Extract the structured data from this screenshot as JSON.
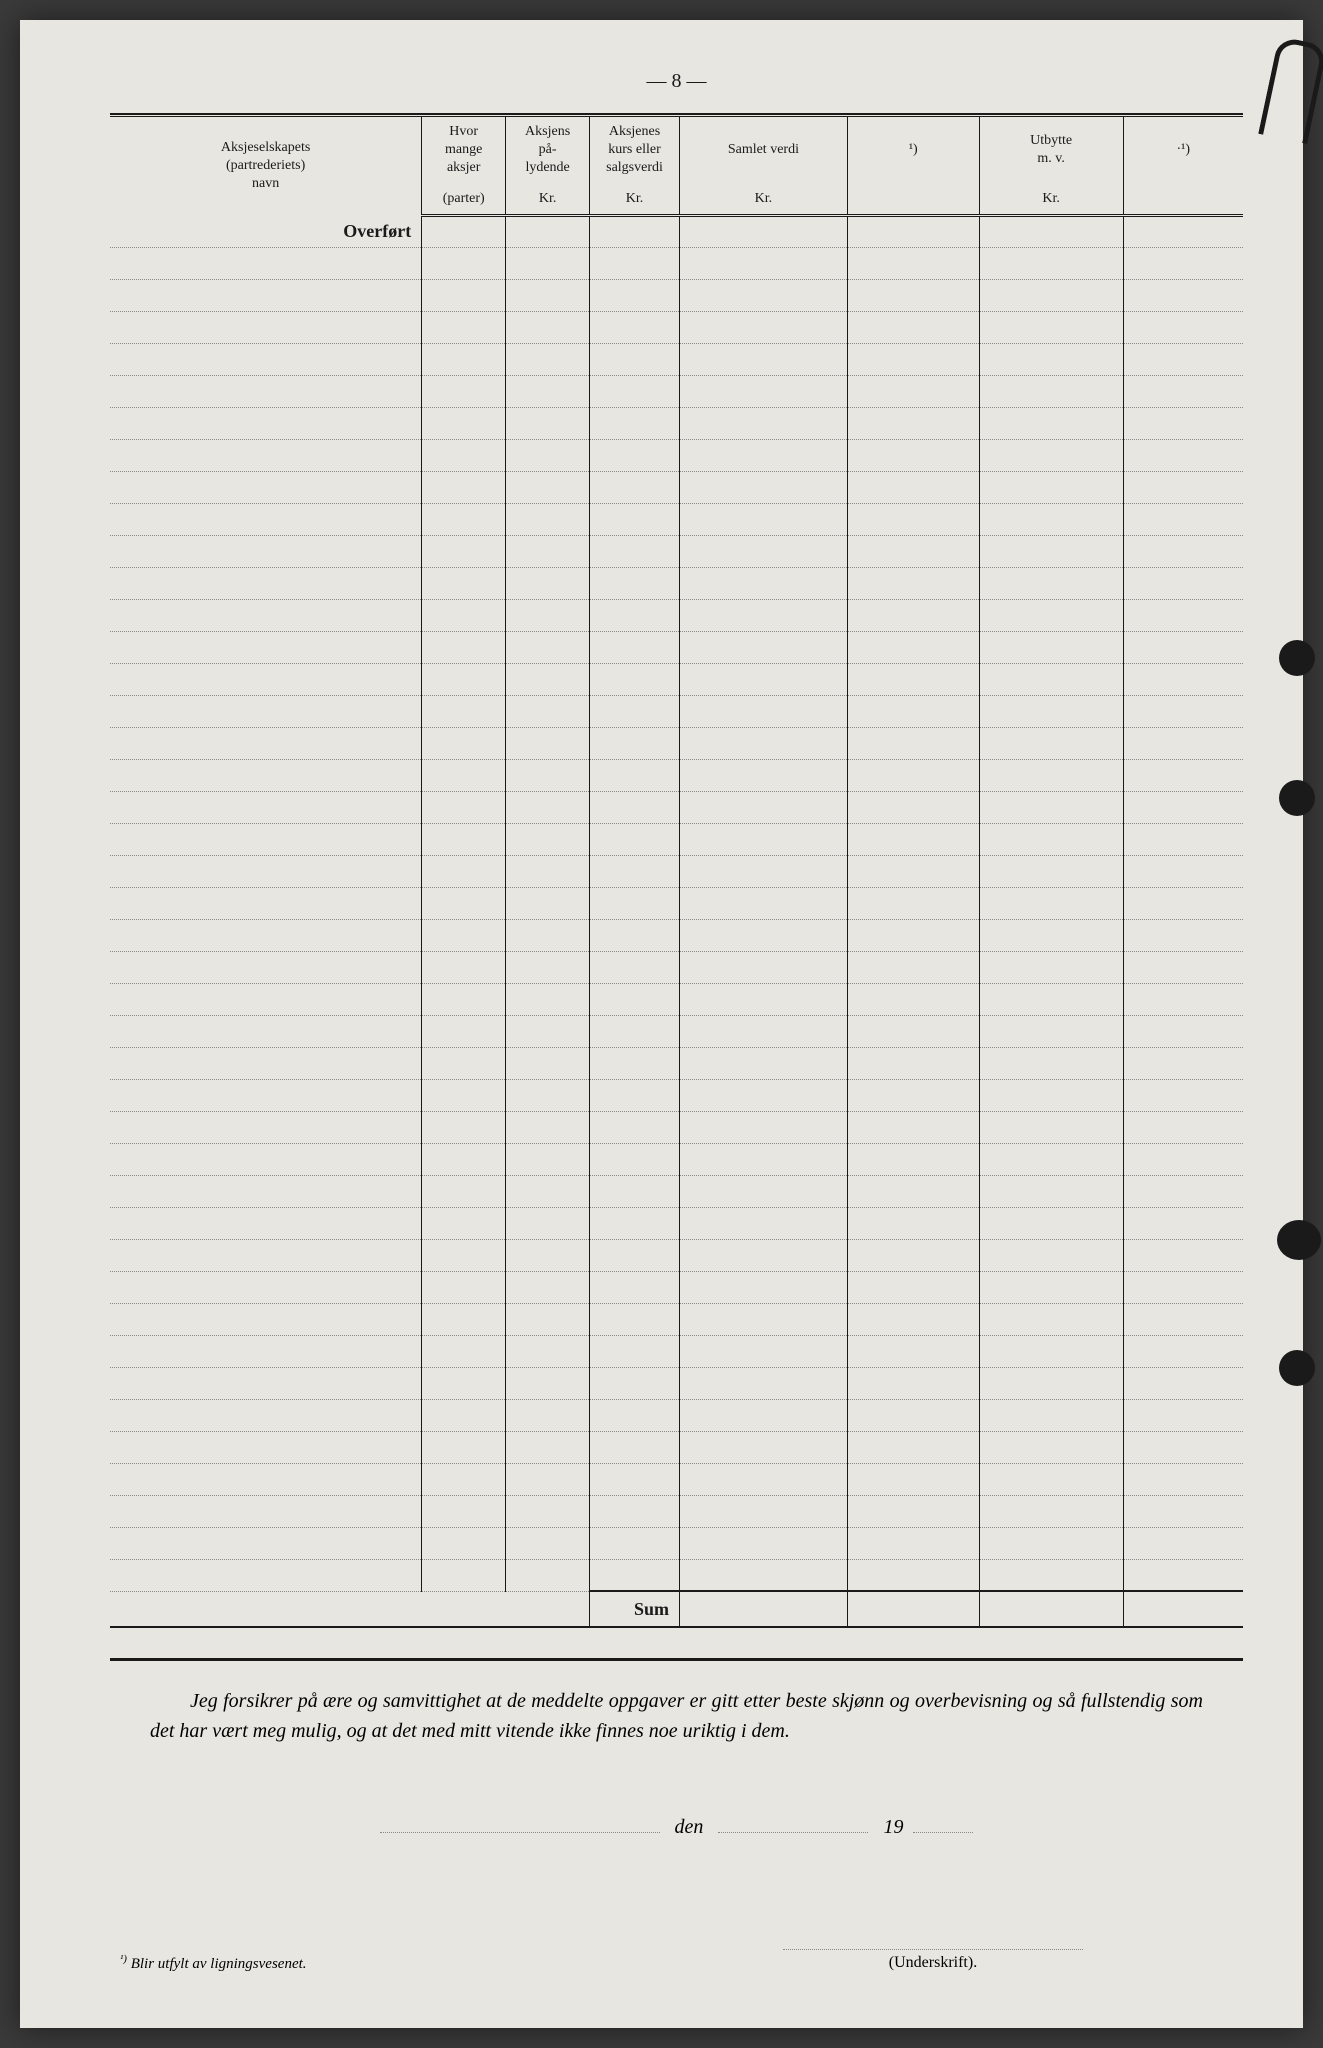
{
  "page": {
    "number": "— 8 —",
    "row_count": 42,
    "colors": {
      "paper": "#e8e6e0",
      "ink": "#1a1a1a",
      "dotted_line": "#888888",
      "background": "#3a3a3a"
    }
  },
  "table": {
    "columns": [
      {
        "key": "navn",
        "header_line1": "Aksjeselskapets",
        "header_line2": "(partrederiets)",
        "header_line3": "navn",
        "unit": ""
      },
      {
        "key": "mange",
        "header_line1": "Hvor",
        "header_line2": "mange",
        "header_line3": "aksjer",
        "unit": "(parter)"
      },
      {
        "key": "lydende",
        "header_line1": "Aksjens",
        "header_line2": "på-",
        "header_line3": "lydende",
        "unit": "Kr."
      },
      {
        "key": "kurs",
        "header_line1": "Aksjenes",
        "header_line2": "kurs eller",
        "header_line3": "salgsverdi",
        "unit": "Kr."
      },
      {
        "key": "samlet",
        "header_line1": "Samlet verdi",
        "header_line2": "",
        "header_line3": "",
        "unit": "Kr."
      },
      {
        "key": "blank1",
        "header_line1": "¹)",
        "header_line2": "",
        "header_line3": "",
        "unit": ""
      },
      {
        "key": "utbytte",
        "header_line1": "Utbytte",
        "header_line2": "m. v.",
        "header_line3": "",
        "unit": "Kr."
      },
      {
        "key": "blank2",
        "header_line1": "·¹)",
        "header_line2": "",
        "header_line3": "",
        "unit": ""
      }
    ],
    "overfort_label": "Overført",
    "sum_label": "Sum"
  },
  "declaration": {
    "text": "Jeg forsikrer på ære og samvittighet at de meddelte oppgaver er gitt etter beste skjønn og overbevisning og så fullstendig som det har vært meg mulig, og at det med mitt vitende ikke finnes noe uriktig i dem."
  },
  "date_line": {
    "den": "den",
    "year_prefix": "19"
  },
  "signature": {
    "label": "(Underskrift)."
  },
  "footnote": {
    "marker": "¹)",
    "text": "Blir utfylt av ligningsvesenet."
  }
}
